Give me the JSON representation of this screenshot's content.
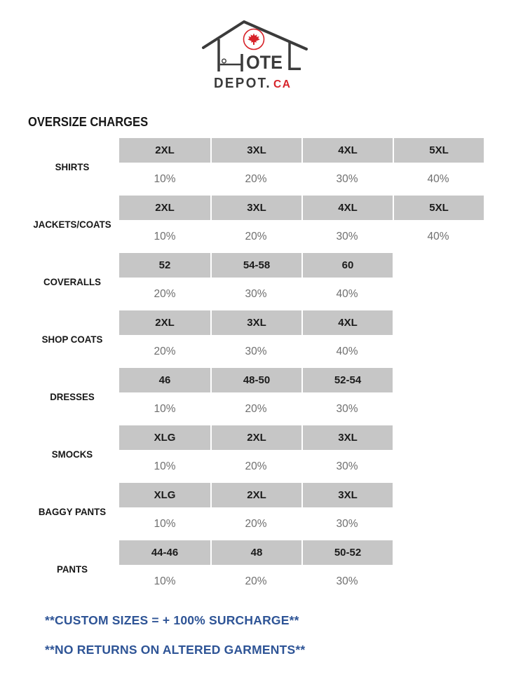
{
  "logo": {
    "hotel_letters": "OTE",
    "depot_text": "DEPOT.",
    "tld_text": "CA",
    "icons": [
      "maple-leaf-icon",
      "bed-icon",
      "house-outline"
    ]
  },
  "title": "OVERSIZE CHARGES",
  "table": {
    "rows": [
      {
        "label": "SHIRTS",
        "sizes": [
          "2XL",
          "3XL",
          "4XL",
          "5XL"
        ],
        "charges": [
          "10%",
          "20%",
          "30%",
          "40%"
        ]
      },
      {
        "label": "JACKETS/COATS",
        "sizes": [
          "2XL",
          "3XL",
          "4XL",
          "5XL"
        ],
        "charges": [
          "10%",
          "20%",
          "30%",
          "40%"
        ]
      },
      {
        "label": "COVERALLS",
        "sizes": [
          "52",
          "54-58",
          "60"
        ],
        "charges": [
          "20%",
          "30%",
          "40%"
        ]
      },
      {
        "label": "SHOP COATS",
        "sizes": [
          "2XL",
          "3XL",
          "4XL"
        ],
        "charges": [
          "20%",
          "30%",
          "40%"
        ]
      },
      {
        "label": "DRESSES",
        "sizes": [
          "46",
          "48-50",
          "52-54"
        ],
        "charges": [
          "10%",
          "20%",
          "30%"
        ]
      },
      {
        "label": "SMOCKS",
        "sizes": [
          "XLG",
          "2XL",
          "3XL"
        ],
        "charges": [
          "10%",
          "20%",
          "30%"
        ]
      },
      {
        "label": "BAGGY PANTS",
        "sizes": [
          "XLG",
          "2XL",
          "3XL"
        ],
        "charges": [
          "10%",
          "20%",
          "30%"
        ]
      },
      {
        "label": "PANTS",
        "sizes": [
          "44-46",
          "48",
          "50-52"
        ],
        "charges": [
          "10%",
          "20%",
          "30%"
        ]
      }
    ]
  },
  "notes": {
    "line1": "**CUSTOM SIZES = + 100% SURCHARGE**",
    "line2": "**NO RETURNS ON ALTERED GARMENTS**"
  },
  "colors": {
    "band_gray": "#c6c6c6",
    "charge_gray": "#6f6f6f",
    "note_blue": "#2e5496",
    "logo_dark": "#3b3b3b",
    "logo_red": "#d7232a"
  }
}
